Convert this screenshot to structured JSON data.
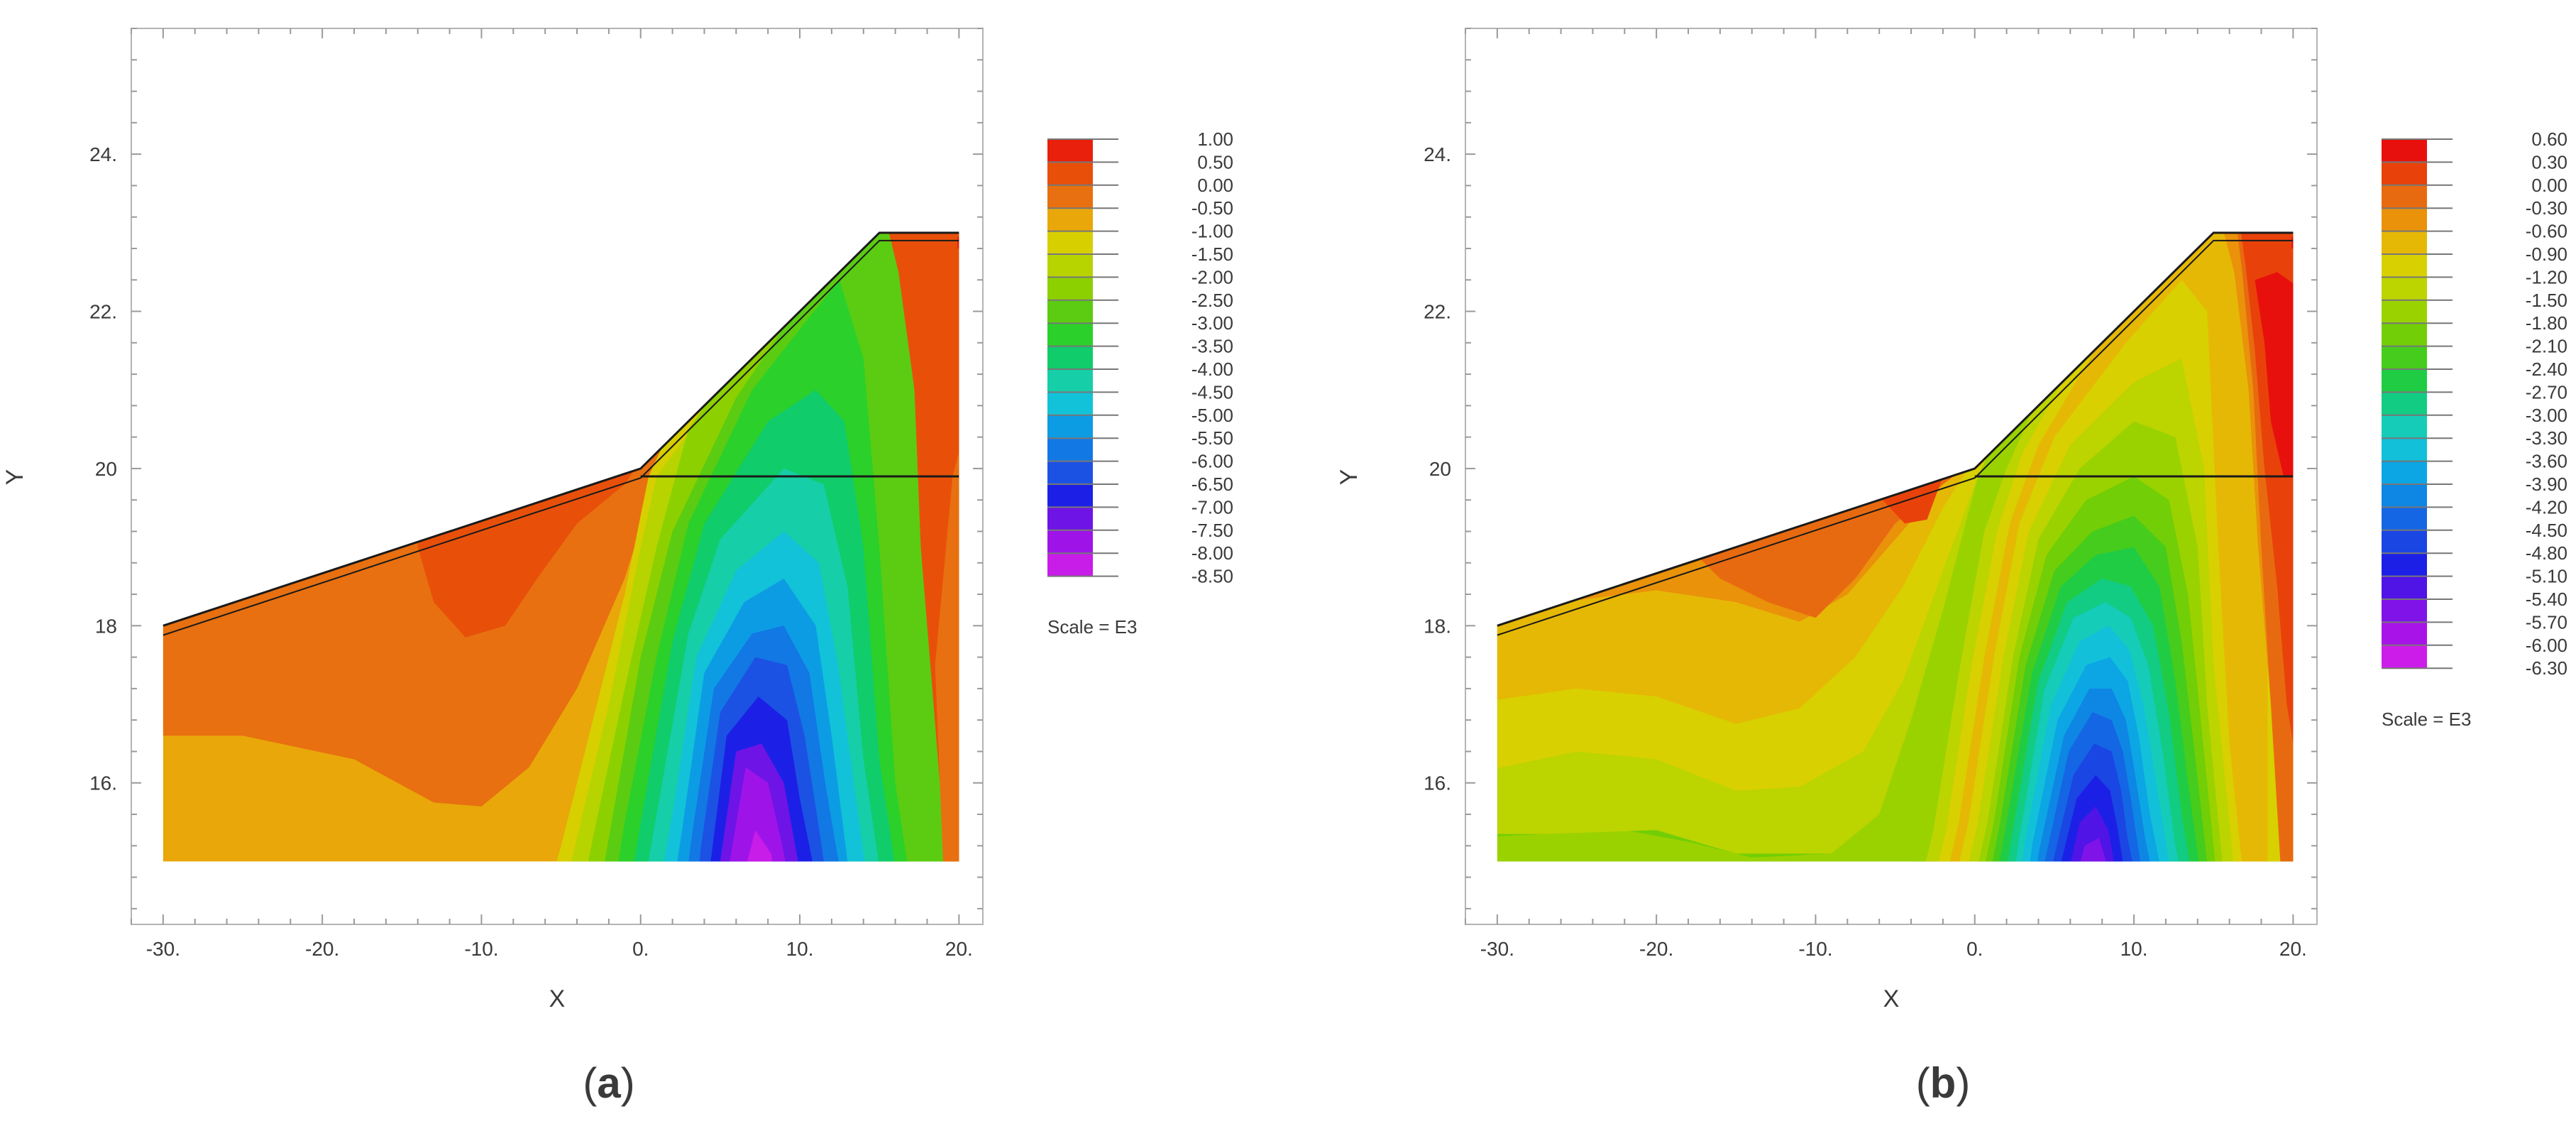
{
  "panels": [
    {
      "caption_open": "(",
      "caption_letter": "a",
      "caption_close": ")",
      "xlabel": "X",
      "ylabel": "Y",
      "scale_note": "Scale = E3"
    },
    {
      "caption_open": "(",
      "caption_letter": "b",
      "caption_close": ")",
      "xlabel": "X",
      "ylabel": "Y",
      "scale_note": "Scale = E3"
    }
  ],
  "chart_data": [
    {
      "type": "heatmap",
      "title": "",
      "xlabel": "X",
      "ylabel": "Y",
      "xlim": [
        -32,
        21.5
      ],
      "ylim": [
        14.2,
        25.6
      ],
      "x_ticks": [
        -30,
        -20,
        -10,
        0,
        10,
        20
      ],
      "x_tick_labels": [
        "-30.",
        "-20.",
        "-10.",
        "0.",
        "10.",
        "20."
      ],
      "y_ticks": [
        16,
        18,
        20,
        22,
        24
      ],
      "y_tick_labels": [
        "16.",
        "18",
        "20",
        "22.",
        "24."
      ],
      "domain_outline": [
        [
          -30,
          15
        ],
        [
          20,
          15
        ],
        [
          20,
          23
        ],
        [
          15,
          23
        ],
        [
          0,
          20
        ],
        [
          -30,
          18
        ]
      ],
      "horizontal_line": {
        "y": 19.9,
        "x_from": 0,
        "x_to": 20
      },
      "colorbar_levels": [
        "1.00",
        "0.50",
        "0.00",
        "-0.50",
        "-1.00",
        "-1.50",
        "-2.00",
        "-2.50",
        "-3.00",
        "-3.50",
        "-4.00",
        "-4.50",
        "-5.00",
        "-5.50",
        "-6.00",
        "-6.50",
        "-7.00",
        "-7.50",
        "-8.00",
        "-8.50"
      ],
      "colorbar_colors": [
        "#e8200c",
        "#e8500a",
        "#e87010",
        "#e9a70a",
        "#d7cf00",
        "#b7d400",
        "#8dd000",
        "#5bcc12",
        "#2cd02a",
        "#10cc6a",
        "#16cea8",
        "#12c2d8",
        "#0c9ce4",
        "#1278e4",
        "#1c52e4",
        "#1c20e6",
        "#6e14e6",
        "#9e14e8",
        "#c81ce8",
        "#ee18ee"
      ],
      "scale": "E3",
      "colorbar_index_by_region": {
        "upper_left_zone_value": "0.00 to 0.50",
        "lower_left_zone_value": "-0.50 to 0.00",
        "trough_min_value": "-8.00 to -8.50",
        "trough_center_x": 7,
        "right_toe_value": "0.50 to 1.00"
      }
    },
    {
      "type": "heatmap",
      "title": "",
      "xlabel": "X",
      "ylabel": "Y",
      "xlim": [
        -32,
        21.5
      ],
      "ylim": [
        14.2,
        25.6
      ],
      "x_ticks": [
        -30,
        -20,
        -10,
        0,
        10,
        20
      ],
      "x_tick_labels": [
        "-30.",
        "-20.",
        "-10.",
        "0.",
        "10.",
        "20."
      ],
      "y_ticks": [
        16,
        18,
        20,
        22,
        24
      ],
      "y_tick_labels": [
        "16.",
        "18.",
        "20",
        "22.",
        "24."
      ],
      "domain_outline": [
        [
          -30,
          15
        ],
        [
          20,
          15
        ],
        [
          20,
          23
        ],
        [
          15,
          23
        ],
        [
          0,
          20
        ],
        [
          -30,
          18
        ]
      ],
      "horizontal_line": {
        "y": 19.9,
        "x_from": 0,
        "x_to": 20
      },
      "colorbar_levels": [
        "0.60",
        "0.30",
        "0.00",
        "-0.30",
        "-0.60",
        "-0.90",
        "-1.20",
        "-1.50",
        "-1.80",
        "-2.10",
        "-2.40",
        "-2.70",
        "-3.00",
        "-3.30",
        "-3.60",
        "-3.90",
        "-4.20",
        "-4.50",
        "-4.80",
        "-5.10",
        "-5.40",
        "-5.70",
        "-6.00",
        "-6.30"
      ],
      "colorbar_colors": [
        "#e8100c",
        "#e8420a",
        "#e86a10",
        "#e9920a",
        "#e6b806",
        "#d8d000",
        "#bcd400",
        "#9ad200",
        "#72ce06",
        "#46cc1c",
        "#20cc44",
        "#12cc84",
        "#14ccb8",
        "#12c0da",
        "#0ca6e4",
        "#0e86e4",
        "#1466e4",
        "#1a46e4",
        "#1c20e6",
        "#5014e6",
        "#8014e8",
        "#a814e8",
        "#cc1cea",
        "#f018ee"
      ],
      "scale": "E3",
      "colorbar_index_by_region": {
        "upper_left_zone_value": "0.00 to -0.30",
        "lower_left_zone_value": "-1.20 to -1.50",
        "trough_min_value": "-6.00 to -6.30",
        "trough_center_x": 6.5,
        "right_toe_value": "0.30 to 0.60"
      }
    }
  ]
}
